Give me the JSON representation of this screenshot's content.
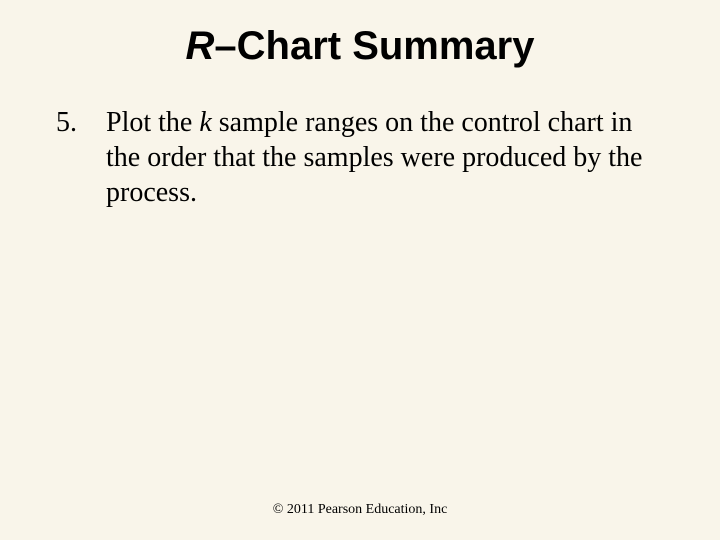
{
  "title": {
    "prefix_italic": "R",
    "rest": "–Chart Summary",
    "fontsize_pt": 40,
    "color": "#000000",
    "font_weight": "bold"
  },
  "list": {
    "number": "5.",
    "body_pre": "Plot the ",
    "body_italic": "k",
    "body_post": " sample ranges on the control chart in the order that the samples were produced by the process.",
    "fontsize_pt": 28,
    "color": "#000000"
  },
  "footer": {
    "text": "© 2011 Pearson Education, Inc",
    "fontsize_pt": 14,
    "color": "#000000"
  },
  "background_color": "#f9f5ea"
}
